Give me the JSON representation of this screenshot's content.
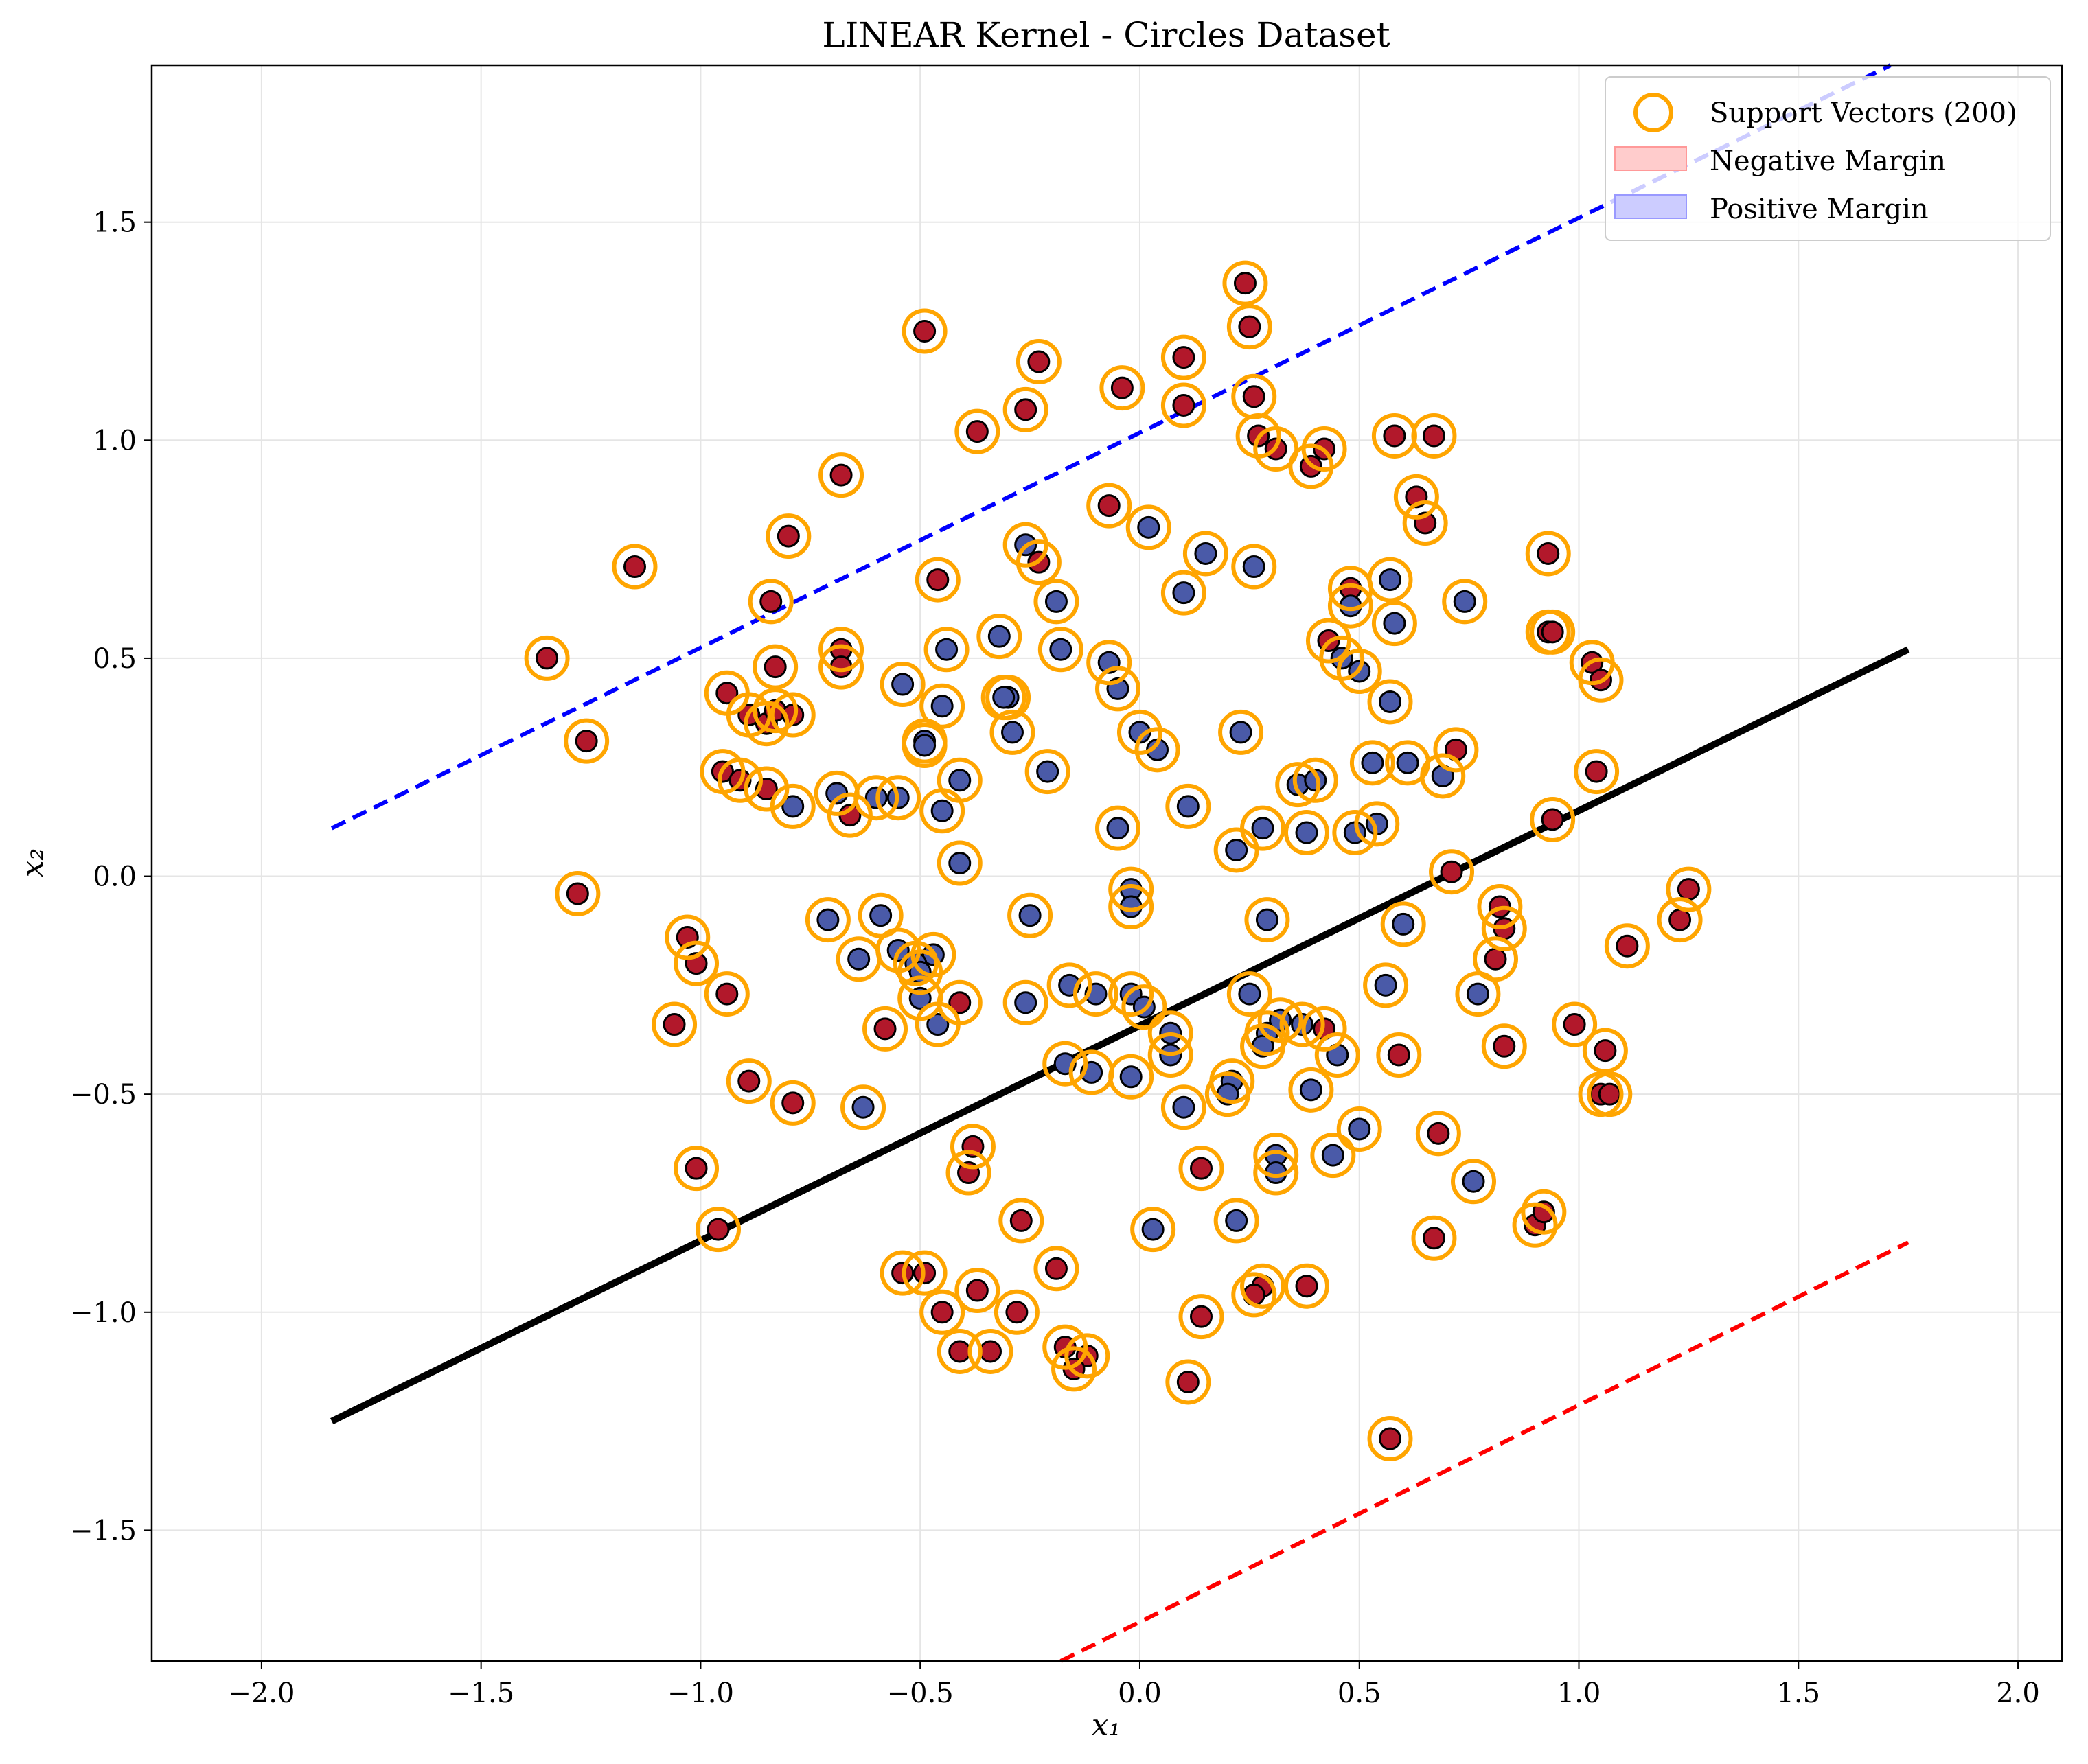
{
  "chart_data": {
    "type": "scatter",
    "title": "LINEAR Kernel - Circles Dataset",
    "xlabel": "x₁",
    "ylabel": "x₂",
    "xlim": [
      -2.25,
      2.1
    ],
    "ylim": [
      -1.8,
      1.86
    ],
    "xticks": [
      -2.0,
      -1.5,
      -1.0,
      -0.5,
      0.0,
      0.5,
      1.0,
      1.5,
      2.0
    ],
    "xtick_labels": [
      "−2.0",
      "−1.5",
      "−1.0",
      "−0.5",
      "0.0",
      "0.5",
      "1.0",
      "1.5",
      "2.0"
    ],
    "yticks": [
      -1.5,
      -1.0,
      -0.5,
      0.0,
      0.5,
      1.0,
      1.5
    ],
    "ytick_labels": [
      "−1.5",
      "−1.0",
      "−0.5",
      "0.0",
      "0.5",
      "1.0",
      "1.5"
    ],
    "grid": true,
    "legend_position": "top-right",
    "legend": [
      {
        "label": "Support Vectors (200)",
        "marker": "circle-outline",
        "color": "#ffa500"
      },
      {
        "label": "Negative Margin",
        "marker": "patch",
        "color": "#ffcccc"
      },
      {
        "label": "Positive Margin",
        "marker": "patch",
        "color": "#ccccff"
      }
    ],
    "class_colors": {
      "class0": "#b2182b",
      "class1": "#4a5aa8"
    },
    "support_vector_color": "#ffa500",
    "decision_boundary": {
      "color": "#000000",
      "style": "solid",
      "x": [
        -1.84,
        1.75
      ],
      "y": [
        -1.25,
        0.52
      ]
    },
    "positive_margin": {
      "color": "#0000ff",
      "style": "dashed",
      "x": [
        -1.84,
        1.71
      ],
      "y": [
        0.11,
        1.86
      ]
    },
    "negative_margin": {
      "color": "#ff0000",
      "style": "dashed",
      "x": [
        -0.18,
        1.75
      ],
      "y": [
        -1.8,
        -0.84
      ]
    },
    "series": [
      {
        "class": 0,
        "points": [
          [
            0.24,
            1.36
          ],
          [
            -0.49,
            1.25
          ],
          [
            0.25,
            1.26
          ],
          [
            -0.23,
            1.18
          ],
          [
            0.1,
            1.19
          ],
          [
            -0.04,
            1.12
          ],
          [
            -0.26,
            1.07
          ],
          [
            0.1,
            1.08
          ],
          [
            0.26,
            1.1
          ],
          [
            -0.37,
            1.02
          ],
          [
            0.27,
            1.01
          ],
          [
            0.31,
            0.98
          ],
          [
            0.42,
            0.98
          ],
          [
            0.39,
            0.94
          ],
          [
            0.58,
            1.01
          ],
          [
            0.67,
            1.01
          ],
          [
            -0.68,
            0.92
          ],
          [
            0.63,
            0.87
          ],
          [
            0.65,
            0.81
          ],
          [
            -0.07,
            0.85
          ],
          [
            -0.8,
            0.78
          ],
          [
            -1.15,
            0.71
          ],
          [
            -0.23,
            0.72
          ],
          [
            -0.46,
            0.68
          ],
          [
            0.93,
            0.74
          ],
          [
            -0.84,
            0.63
          ],
          [
            0.48,
            0.66
          ],
          [
            0.93,
            0.56
          ],
          [
            0.94,
            0.56
          ],
          [
            -0.68,
            0.52
          ],
          [
            -0.68,
            0.48
          ],
          [
            -0.83,
            0.48
          ],
          [
            -1.35,
            0.5
          ],
          [
            1.03,
            0.49
          ],
          [
            1.05,
            0.45
          ],
          [
            0.43,
            0.54
          ],
          [
            -0.94,
            0.42
          ],
          [
            -0.89,
            0.37
          ],
          [
            -0.85,
            0.35
          ],
          [
            -0.83,
            0.38
          ],
          [
            -0.79,
            0.37
          ],
          [
            -1.26,
            0.31
          ],
          [
            0.72,
            0.29
          ],
          [
            1.04,
            0.24
          ],
          [
            -0.95,
            0.24
          ],
          [
            -0.91,
            0.22
          ],
          [
            -0.85,
            0.2
          ],
          [
            -0.66,
            0.14
          ],
          [
            0.94,
            0.13
          ],
          [
            0.71,
            0.01
          ],
          [
            -1.28,
            -0.04
          ],
          [
            1.25,
            -0.03
          ],
          [
            1.23,
            -0.1
          ],
          [
            0.82,
            -0.07
          ],
          [
            0.83,
            -0.12
          ],
          [
            -1.03,
            -0.14
          ],
          [
            -1.01,
            -0.2
          ],
          [
            0.81,
            -0.19
          ],
          [
            1.11,
            -0.16
          ],
          [
            -0.94,
            -0.27
          ],
          [
            -0.41,
            -0.29
          ],
          [
            -1.06,
            -0.34
          ],
          [
            -0.58,
            -0.35
          ],
          [
            0.99,
            -0.34
          ],
          [
            1.06,
            -0.4
          ],
          [
            0.83,
            -0.39
          ],
          [
            0.59,
            -0.41
          ],
          [
            0.42,
            -0.35
          ],
          [
            -0.89,
            -0.47
          ],
          [
            -0.79,
            -0.52
          ],
          [
            1.05,
            -0.5
          ],
          [
            1.07,
            -0.5
          ],
          [
            -0.38,
            -0.62
          ],
          [
            -0.39,
            -0.68
          ],
          [
            0.14,
            -0.67
          ],
          [
            -1.01,
            -0.67
          ],
          [
            0.68,
            -0.59
          ],
          [
            -0.96,
            -0.81
          ],
          [
            -0.27,
            -0.79
          ],
          [
            0.67,
            -0.83
          ],
          [
            0.9,
            -0.8
          ],
          [
            0.92,
            -0.77
          ],
          [
            -0.19,
            -0.9
          ],
          [
            -0.54,
            -0.91
          ],
          [
            -0.49,
            -0.91
          ],
          [
            -0.37,
            -0.95
          ],
          [
            0.28,
            -0.94
          ],
          [
            0.38,
            -0.94
          ],
          [
            -0.45,
            -1.0
          ],
          [
            -0.28,
            -1.0
          ],
          [
            0.14,
            -1.01
          ],
          [
            0.26,
            -0.96
          ],
          [
            -0.41,
            -1.09
          ],
          [
            -0.34,
            -1.09
          ],
          [
            -0.17,
            -1.08
          ],
          [
            -0.12,
            -1.1
          ],
          [
            -0.15,
            -1.13
          ],
          [
            0.11,
            -1.16
          ],
          [
            0.57,
            -1.29
          ]
        ]
      },
      {
        "class": 1,
        "points": [
          [
            0.02,
            0.8
          ],
          [
            0.15,
            0.74
          ],
          [
            0.26,
            0.71
          ],
          [
            -0.26,
            0.76
          ],
          [
            0.57,
            0.68
          ],
          [
            0.1,
            0.65
          ],
          [
            -0.19,
            0.63
          ],
          [
            0.48,
            0.62
          ],
          [
            0.58,
            0.58
          ],
          [
            0.74,
            0.63
          ],
          [
            -0.32,
            0.55
          ],
          [
            -0.44,
            0.52
          ],
          [
            -0.18,
            0.52
          ],
          [
            -0.07,
            0.49
          ],
          [
            0.46,
            0.5
          ],
          [
            0.5,
            0.47
          ],
          [
            -0.54,
            0.44
          ],
          [
            -0.05,
            0.43
          ],
          [
            -0.45,
            0.39
          ],
          [
            -0.3,
            0.41
          ],
          [
            -0.31,
            0.41
          ],
          [
            0.57,
            0.4
          ],
          [
            -0.49,
            0.31
          ],
          [
            -0.49,
            0.3
          ],
          [
            -0.29,
            0.33
          ],
          [
            0.23,
            0.33
          ],
          [
            0.0,
            0.33
          ],
          [
            0.04,
            0.29
          ],
          [
            0.53,
            0.26
          ],
          [
            0.61,
            0.26
          ],
          [
            0.69,
            0.23
          ],
          [
            -0.41,
            0.22
          ],
          [
            -0.21,
            0.24
          ],
          [
            0.36,
            0.21
          ],
          [
            0.4,
            0.22
          ],
          [
            -0.69,
            0.19
          ],
          [
            -0.6,
            0.18
          ],
          [
            -0.55,
            0.18
          ],
          [
            -0.79,
            0.16
          ],
          [
            -0.45,
            0.15
          ],
          [
            0.11,
            0.16
          ],
          [
            -0.05,
            0.11
          ],
          [
            0.28,
            0.11
          ],
          [
            0.38,
            0.1
          ],
          [
            0.49,
            0.1
          ],
          [
            0.54,
            0.12
          ],
          [
            0.22,
            0.06
          ],
          [
            -0.41,
            0.03
          ],
          [
            -0.02,
            -0.03
          ],
          [
            -0.02,
            -0.07
          ],
          [
            -0.71,
            -0.1
          ],
          [
            -0.59,
            -0.09
          ],
          [
            -0.25,
            -0.09
          ],
          [
            0.29,
            -0.1
          ],
          [
            0.6,
            -0.11
          ],
          [
            -0.64,
            -0.19
          ],
          [
            -0.55,
            -0.17
          ],
          [
            -0.47,
            -0.18
          ],
          [
            -0.51,
            -0.2
          ],
          [
            -0.5,
            -0.22
          ],
          [
            -0.5,
            -0.28
          ],
          [
            -0.16,
            -0.25
          ],
          [
            -0.1,
            -0.27
          ],
          [
            -0.02,
            -0.27
          ],
          [
            0.01,
            -0.3
          ],
          [
            -0.26,
            -0.29
          ],
          [
            0.25,
            -0.27
          ],
          [
            0.56,
            -0.25
          ],
          [
            0.77,
            -0.27
          ],
          [
            -0.46,
            -0.34
          ],
          [
            0.07,
            -0.36
          ],
          [
            0.29,
            -0.36
          ],
          [
            0.28,
            -0.39
          ],
          [
            0.32,
            -0.33
          ],
          [
            0.37,
            -0.34
          ],
          [
            0.07,
            -0.41
          ],
          [
            0.45,
            -0.41
          ],
          [
            -0.17,
            -0.43
          ],
          [
            -0.11,
            -0.45
          ],
          [
            -0.02,
            -0.46
          ],
          [
            0.21,
            -0.47
          ],
          [
            0.2,
            -0.5
          ],
          [
            0.39,
            -0.49
          ],
          [
            0.1,
            -0.53
          ],
          [
            -0.63,
            -0.53
          ],
          [
            0.5,
            -0.58
          ],
          [
            0.31,
            -0.64
          ],
          [
            0.31,
            -0.68
          ],
          [
            0.44,
            -0.64
          ],
          [
            0.76,
            -0.7
          ],
          [
            0.03,
            -0.81
          ],
          [
            0.22,
            -0.79
          ]
        ]
      }
    ]
  }
}
